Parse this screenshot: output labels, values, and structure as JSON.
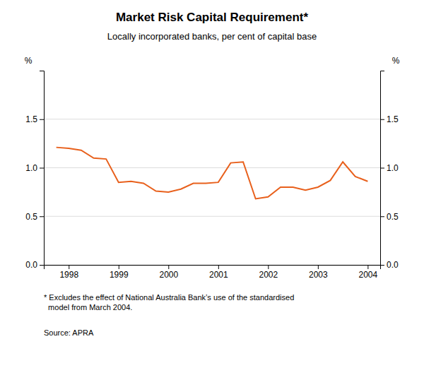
{
  "chart_data": {
    "type": "line",
    "title": "Market Risk Capital Requirement*",
    "subtitle": "Locally incorporated banks, per cent of capital base",
    "footnote": "* Excludes the effect of National Australia Bank’s use of the standardised\n  model from March 2004.",
    "source": "Source: APRA",
    "ylabel": "%",
    "y2label": "%",
    "color": "#E8601C",
    "x": [
      1997.75,
      1998.0,
      1998.25,
      1998.5,
      1998.75,
      1999.0,
      1999.25,
      1999.5,
      1999.75,
      2000.0,
      2000.25,
      2000.5,
      2000.75,
      2001.0,
      2001.25,
      2001.5,
      2001.75,
      2002.0,
      2002.25,
      2002.5,
      2002.75,
      2003.0,
      2003.25,
      2003.5,
      2003.75,
      2004.0
    ],
    "values": [
      1.21,
      1.2,
      1.18,
      1.1,
      1.09,
      0.85,
      0.86,
      0.84,
      0.76,
      0.75,
      0.78,
      0.84,
      0.84,
      0.85,
      1.05,
      1.06,
      0.68,
      0.7,
      0.8,
      0.8,
      0.77,
      0.8,
      0.87,
      1.06,
      0.91,
      0.86
    ],
    "xlim": [
      1997.5,
      2004.25
    ],
    "xticks": [
      1998,
      1999,
      2000,
      2001,
      2002,
      2003,
      2004
    ],
    "ylim": [
      0.0,
      2.0
    ],
    "yticks": [
      {
        "value": 0.0,
        "label": "0.0"
      },
      0.5,
      {
        "value": 1.0,
        "label": "1.0"
      },
      1.5
    ],
    "y2lim": [
      0.0,
      2.0
    ],
    "y2ticks": [
      {
        "value": 0.0,
        "label": "0.0"
      },
      0.5,
      {
        "value": 1.0,
        "label": "1.0"
      },
      1.5
    ],
    "grid": true
  }
}
